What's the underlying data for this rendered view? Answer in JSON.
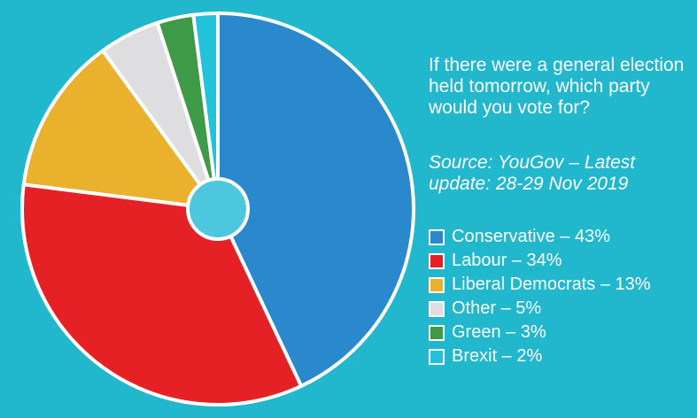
{
  "question": "If there were a general election held tomorrow, which party would you vote for?",
  "source": "Source: YouGov – Latest update: 28-29 Nov 2019",
  "chart_data": {
    "type": "pie",
    "title": "If there were a general election held tomorrow, which party would you vote for?",
    "subtitle": "Source: YouGov – Latest update: 28-29 Nov 2019",
    "slices": [
      {
        "name": "Conservative",
        "value": 43,
        "color": "#2A88CC",
        "legend": "Conservative – 43%"
      },
      {
        "name": "Labour",
        "value": 34,
        "color": "#E62125",
        "legend": "Labour – 34%"
      },
      {
        "name": "Liberal Democrats",
        "value": 13,
        "color": "#E9B12C",
        "legend": "Liberal Democrats – 13%"
      },
      {
        "name": "Other",
        "value": 5,
        "color": "#DEDEE0",
        "legend": "Other – 5%"
      },
      {
        "name": "Green",
        "value": 3,
        "color": "#3E9A46",
        "legend": "Green – 3%"
      },
      {
        "name": "Brexit",
        "value": 2,
        "color": "#21C3DA",
        "legend": "Brexit – 2%"
      }
    ],
    "legend_position": "right",
    "center_hole_color": "#4DC7DD"
  }
}
